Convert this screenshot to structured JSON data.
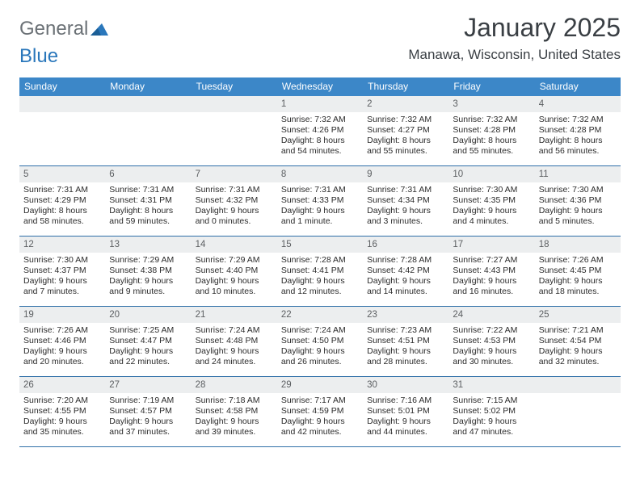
{
  "brand": {
    "word1": "General",
    "word2": "Blue"
  },
  "title": "January 2025",
  "location": "Manawa, Wisconsin, United States",
  "colors": {
    "header_bg": "#3c87c8",
    "header_text": "#ffffff",
    "daynum_bg": "#eceeef",
    "daynum_text": "#5c5f62",
    "rule": "#2f6fa8",
    "body_text": "#2b2b2b",
    "title_text": "#3a3f44",
    "brand_gray": "#6b7176",
    "brand_blue": "#2a77bb"
  },
  "weekdays": [
    "Sunday",
    "Monday",
    "Tuesday",
    "Wednesday",
    "Thursday",
    "Friday",
    "Saturday"
  ],
  "weeks": [
    [
      null,
      null,
      null,
      {
        "n": "1",
        "sunrise": "7:32 AM",
        "sunset": "4:26 PM",
        "dl": "8 hours and 54 minutes."
      },
      {
        "n": "2",
        "sunrise": "7:32 AM",
        "sunset": "4:27 PM",
        "dl": "8 hours and 55 minutes."
      },
      {
        "n": "3",
        "sunrise": "7:32 AM",
        "sunset": "4:28 PM",
        "dl": "8 hours and 55 minutes."
      },
      {
        "n": "4",
        "sunrise": "7:32 AM",
        "sunset": "4:28 PM",
        "dl": "8 hours and 56 minutes."
      }
    ],
    [
      {
        "n": "5",
        "sunrise": "7:31 AM",
        "sunset": "4:29 PM",
        "dl": "8 hours and 58 minutes."
      },
      {
        "n": "6",
        "sunrise": "7:31 AM",
        "sunset": "4:31 PM",
        "dl": "8 hours and 59 minutes."
      },
      {
        "n": "7",
        "sunrise": "7:31 AM",
        "sunset": "4:32 PM",
        "dl": "9 hours and 0 minutes."
      },
      {
        "n": "8",
        "sunrise": "7:31 AM",
        "sunset": "4:33 PM",
        "dl": "9 hours and 1 minute."
      },
      {
        "n": "9",
        "sunrise": "7:31 AM",
        "sunset": "4:34 PM",
        "dl": "9 hours and 3 minutes."
      },
      {
        "n": "10",
        "sunrise": "7:30 AM",
        "sunset": "4:35 PM",
        "dl": "9 hours and 4 minutes."
      },
      {
        "n": "11",
        "sunrise": "7:30 AM",
        "sunset": "4:36 PM",
        "dl": "9 hours and 5 minutes."
      }
    ],
    [
      {
        "n": "12",
        "sunrise": "7:30 AM",
        "sunset": "4:37 PM",
        "dl": "9 hours and 7 minutes."
      },
      {
        "n": "13",
        "sunrise": "7:29 AM",
        "sunset": "4:38 PM",
        "dl": "9 hours and 9 minutes."
      },
      {
        "n": "14",
        "sunrise": "7:29 AM",
        "sunset": "4:40 PM",
        "dl": "9 hours and 10 minutes."
      },
      {
        "n": "15",
        "sunrise": "7:28 AM",
        "sunset": "4:41 PM",
        "dl": "9 hours and 12 minutes."
      },
      {
        "n": "16",
        "sunrise": "7:28 AM",
        "sunset": "4:42 PM",
        "dl": "9 hours and 14 minutes."
      },
      {
        "n": "17",
        "sunrise": "7:27 AM",
        "sunset": "4:43 PM",
        "dl": "9 hours and 16 minutes."
      },
      {
        "n": "18",
        "sunrise": "7:26 AM",
        "sunset": "4:45 PM",
        "dl": "9 hours and 18 minutes."
      }
    ],
    [
      {
        "n": "19",
        "sunrise": "7:26 AM",
        "sunset": "4:46 PM",
        "dl": "9 hours and 20 minutes."
      },
      {
        "n": "20",
        "sunrise": "7:25 AM",
        "sunset": "4:47 PM",
        "dl": "9 hours and 22 minutes."
      },
      {
        "n": "21",
        "sunrise": "7:24 AM",
        "sunset": "4:48 PM",
        "dl": "9 hours and 24 minutes."
      },
      {
        "n": "22",
        "sunrise": "7:24 AM",
        "sunset": "4:50 PM",
        "dl": "9 hours and 26 minutes."
      },
      {
        "n": "23",
        "sunrise": "7:23 AM",
        "sunset": "4:51 PM",
        "dl": "9 hours and 28 minutes."
      },
      {
        "n": "24",
        "sunrise": "7:22 AM",
        "sunset": "4:53 PM",
        "dl": "9 hours and 30 minutes."
      },
      {
        "n": "25",
        "sunrise": "7:21 AM",
        "sunset": "4:54 PM",
        "dl": "9 hours and 32 minutes."
      }
    ],
    [
      {
        "n": "26",
        "sunrise": "7:20 AM",
        "sunset": "4:55 PM",
        "dl": "9 hours and 35 minutes."
      },
      {
        "n": "27",
        "sunrise": "7:19 AM",
        "sunset": "4:57 PM",
        "dl": "9 hours and 37 minutes."
      },
      {
        "n": "28",
        "sunrise": "7:18 AM",
        "sunset": "4:58 PM",
        "dl": "9 hours and 39 minutes."
      },
      {
        "n": "29",
        "sunrise": "7:17 AM",
        "sunset": "4:59 PM",
        "dl": "9 hours and 42 minutes."
      },
      {
        "n": "30",
        "sunrise": "7:16 AM",
        "sunset": "5:01 PM",
        "dl": "9 hours and 44 minutes."
      },
      {
        "n": "31",
        "sunrise": "7:15 AM",
        "sunset": "5:02 PM",
        "dl": "9 hours and 47 minutes."
      },
      null
    ]
  ],
  "labels": {
    "sunrise_prefix": "Sunrise: ",
    "sunset_prefix": "Sunset: ",
    "daylight_prefix": "Daylight: "
  }
}
